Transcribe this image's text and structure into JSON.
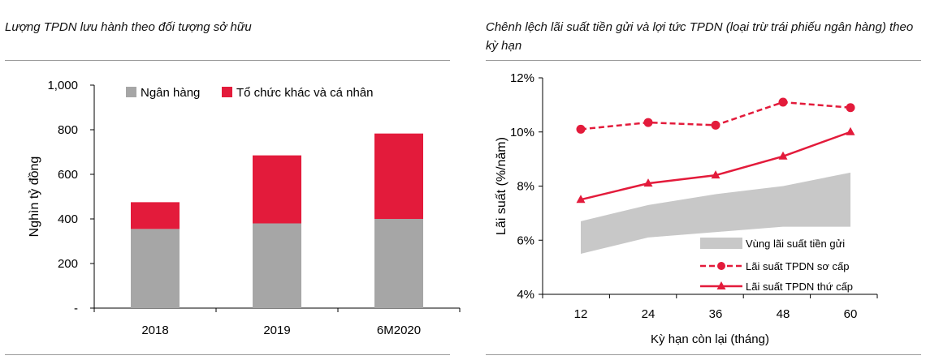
{
  "left_title": "Lượng TPDN lưu hành theo đối tượng sở hữu",
  "right_title": "Chênh lệch lãi suất tiền gửi và lợi tức TPDN (loại trừ trái phiếu ngân hàng) theo kỳ hạn",
  "colors": {
    "gray": "#a6a6a6",
    "red": "#e31b3b",
    "band": "#c8c8c8"
  },
  "chart_data": [
    {
      "type": "bar",
      "stacked": true,
      "categories": [
        "2018",
        "2019",
        "6M2020"
      ],
      "series": [
        {
          "name": "Ngân hàng",
          "values": [
            355,
            380,
            400
          ],
          "color": "#a6a6a6"
        },
        {
          "name": "Tổ chức khác và cá nhân",
          "values": [
            120,
            305,
            383
          ],
          "color": "#e31b3b"
        }
      ],
      "ylabel": "Nghìn tỷ đồng",
      "ylim": [
        0,
        1000
      ],
      "yticks": [
        0,
        200,
        400,
        600,
        800,
        1000
      ],
      "ytick_labels": [
        "-",
        "200",
        "400",
        "600",
        "800",
        "1,000"
      ],
      "legend": "top"
    },
    {
      "type": "line",
      "x": [
        12,
        24,
        36,
        48,
        60
      ],
      "xlabel": "Kỳ hạn còn lại (tháng)",
      "ylabel": "Lãi suất (%/năm)",
      "ylim": [
        4,
        12
      ],
      "yticks": [
        4,
        6,
        8,
        10,
        12
      ],
      "ytick_labels": [
        "4%",
        "6%",
        "8%",
        "10%",
        "12%"
      ],
      "xtick_labels": [
        "12",
        "24",
        "36",
        "48",
        "60"
      ],
      "band": {
        "name": "Vùng lãi suất tiền gửi",
        "lower": [
          5.5,
          6.1,
          6.3,
          6.5,
          6.5
        ],
        "upper": [
          6.7,
          7.3,
          7.7,
          8.0,
          8.5
        ]
      },
      "series": [
        {
          "name": "Lãi suất TPDN sơ cấp",
          "values": [
            10.1,
            10.35,
            10.25,
            11.1,
            10.9
          ],
          "style": "dashed",
          "marker": "circle"
        },
        {
          "name": "Lãi suất TPDN thứ cấp",
          "values": [
            7.5,
            8.1,
            8.4,
            9.1,
            10.0
          ],
          "style": "solid",
          "marker": "triangle"
        }
      ],
      "legend": "bottom-right"
    }
  ]
}
